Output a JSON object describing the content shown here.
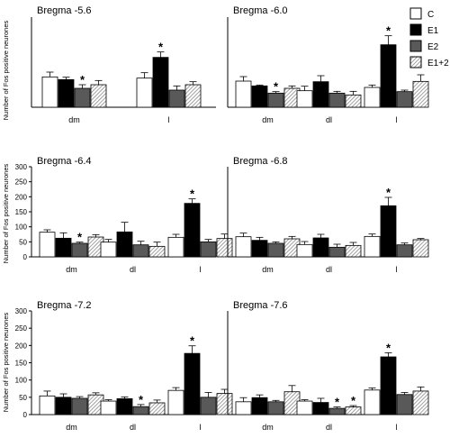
{
  "figure": {
    "ylabel": "Number of Fos positive neurones",
    "legend": [
      {
        "key": "C",
        "label": "C",
        "color": "#ffffff",
        "pattern": "none"
      },
      {
        "key": "E1",
        "label": "E1",
        "color": "#000000",
        "pattern": "none"
      },
      {
        "key": "E2",
        "label": "E2",
        "color": "#595959",
        "pattern": "none"
      },
      {
        "key": "E12",
        "label": "E1+2",
        "color": "#c8c8c8",
        "pattern": "hatch"
      }
    ]
  },
  "chart_data": [
    {
      "type": "bar",
      "title": "Bregma -5.6",
      "categories": [
        "dm",
        "l"
      ],
      "ylim": [
        0,
        300
      ],
      "yticks": [],
      "series": [
        {
          "name": "C",
          "values": [
            101,
            97
          ],
          "errors": [
            16,
            18
          ]
        },
        {
          "name": "E1",
          "values": [
            92,
            166
          ],
          "errors": [
            8,
            18
          ]
        },
        {
          "name": "E2",
          "values": [
            63,
            57
          ],
          "errors": [
            12,
            14
          ]
        },
        {
          "name": "E1+2",
          "values": [
            75,
            75
          ],
          "errors": [
            14,
            10
          ]
        }
      ],
      "significance": [
        {
          "category": "dm",
          "series": "E2"
        },
        {
          "category": "l",
          "series": "E1"
        }
      ]
    },
    {
      "type": "bar",
      "title": "Bregma -6.0",
      "categories": [
        "dm",
        "dl",
        "l"
      ],
      "ylim": [
        0,
        300
      ],
      "yticks": [],
      "series": [
        {
          "name": "C",
          "values": [
            87,
            55,
            66
          ],
          "errors": [
            15,
            15,
            8
          ]
        },
        {
          "name": "E1",
          "values": [
            71,
            85,
            208
          ],
          "errors": [
            3,
            20,
            30
          ]
        },
        {
          "name": "E2",
          "values": [
            47,
            47,
            52
          ],
          "errors": [
            5,
            6,
            5
          ]
        },
        {
          "name": "E1+2",
          "values": [
            63,
            41,
            86
          ],
          "errors": [
            8,
            12,
            22
          ]
        }
      ],
      "significance": [
        {
          "category": "dm",
          "series": "E2"
        },
        {
          "category": "l",
          "series": "E1"
        }
      ]
    },
    {
      "type": "bar",
      "title": "Bregma -6.4",
      "categories": [
        "dm",
        "dl",
        "l"
      ],
      "ylim": [
        0,
        300
      ],
      "yticks": [
        0,
        50,
        100,
        150,
        200,
        250,
        300
      ],
      "series": [
        {
          "name": "C",
          "values": [
            82,
            49,
            65
          ],
          "errors": [
            8,
            9,
            10
          ]
        },
        {
          "name": "E1",
          "values": [
            62,
            83,
            178
          ],
          "errors": [
            18,
            32,
            15
          ]
        },
        {
          "name": "E2",
          "values": [
            45,
            40,
            50
          ],
          "errors": [
            4,
            12,
            8
          ]
        },
        {
          "name": "E1+2",
          "values": [
            66,
            35,
            61
          ],
          "errors": [
            8,
            14,
            15
          ]
        }
      ],
      "significance": [
        {
          "category": "dm",
          "series": "E2"
        },
        {
          "category": "l",
          "series": "E1"
        }
      ]
    },
    {
      "type": "bar",
      "title": "Bregma -6.8",
      "categories": [
        "dm",
        "dl",
        "l"
      ],
      "ylim": [
        0,
        300
      ],
      "yticks": [],
      "series": [
        {
          "name": "C",
          "values": [
            67,
            41,
            68
          ],
          "errors": [
            12,
            10,
            8
          ]
        },
        {
          "name": "E1",
          "values": [
            55,
            63,
            170
          ],
          "errors": [
            10,
            12,
            28
          ]
        },
        {
          "name": "E2",
          "values": [
            45,
            32,
            40
          ],
          "errors": [
            5,
            10,
            6
          ]
        },
        {
          "name": "E1+2",
          "values": [
            60,
            38,
            57
          ],
          "errors": [
            8,
            10,
            4
          ]
        }
      ],
      "significance": [
        {
          "category": "l",
          "series": "E1"
        }
      ]
    },
    {
      "type": "bar",
      "title": "Bregma -7.2",
      "categories": [
        "dm",
        "dl",
        "l"
      ],
      "ylim": [
        0,
        300
      ],
      "yticks": [
        0,
        50,
        100,
        150,
        200,
        250,
        300
      ],
      "series": [
        {
          "name": "C",
          "values": [
            54,
            39,
            70
          ],
          "errors": [
            14,
            4,
            8
          ]
        },
        {
          "name": "E1",
          "values": [
            50,
            46,
            177
          ],
          "errors": [
            10,
            5,
            22
          ]
        },
        {
          "name": "E2",
          "values": [
            47,
            23,
            50
          ],
          "errors": [
            5,
            6,
            14
          ]
        },
        {
          "name": "E1+2",
          "values": [
            57,
            34,
            61
          ],
          "errors": [
            6,
            8,
            12
          ]
        }
      ],
      "significance": [
        {
          "category": "dl",
          "series": "E2"
        },
        {
          "category": "l",
          "series": "E1"
        }
      ]
    },
    {
      "type": "bar",
      "title": "Bregma -7.6",
      "categories": [
        "dm",
        "dl",
        "l"
      ],
      "ylim": [
        0,
        300
      ],
      "yticks": [],
      "series": [
        {
          "name": "C",
          "values": [
            37,
            39,
            71
          ],
          "errors": [
            12,
            4,
            6
          ]
        },
        {
          "name": "E1",
          "values": [
            49,
            35,
            167
          ],
          "errors": [
            8,
            12,
            12
          ]
        },
        {
          "name": "E2",
          "values": [
            37,
            18,
            58
          ],
          "errors": [
            4,
            4,
            6
          ]
        },
        {
          "name": "E1+2",
          "values": [
            66,
            22,
            68
          ],
          "errors": [
            18,
            4,
            12
          ]
        }
      ],
      "significance": [
        {
          "category": "dl",
          "series": "E2"
        },
        {
          "category": "dl",
          "series": "E1+2"
        },
        {
          "category": "l",
          "series": "E1"
        }
      ]
    }
  ]
}
